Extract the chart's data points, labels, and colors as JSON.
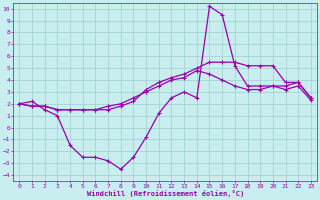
{
  "title": "",
  "xlabel": "Windchill (Refroidissement éolien,°C)",
  "bg_color": "#c8eef0",
  "grid_color": "#9ecfcf",
  "line_color": "#9900aa",
  "xlim": [
    -0.5,
    23.5
  ],
  "ylim": [
    -4.5,
    10.5
  ],
  "xticks": [
    0,
    1,
    2,
    3,
    4,
    5,
    6,
    7,
    8,
    9,
    10,
    11,
    12,
    13,
    14,
    15,
    16,
    17,
    18,
    19,
    20,
    21,
    22,
    23
  ],
  "yticks": [
    -4,
    -3,
    -2,
    -1,
    0,
    1,
    2,
    3,
    4,
    5,
    6,
    7,
    8,
    9,
    10
  ],
  "series": [
    {
      "x": [
        0,
        1,
        2,
        3,
        4,
        5,
        6,
        7,
        8,
        9,
        10,
        11,
        12,
        13,
        14,
        15,
        16,
        17,
        18,
        19,
        20,
        21,
        22,
        23
      ],
      "y": [
        2,
        2.2,
        1.5,
        1,
        -1.5,
        -2.5,
        -2.5,
        -2.8,
        -3.5,
        -2.5,
        -0.8,
        1.2,
        2.5,
        3,
        2.5,
        10.2,
        9.5,
        5.2,
        3.5,
        3.5,
        3.5,
        3.2,
        3.5,
        2.3
      ]
    },
    {
      "x": [
        0,
        1,
        2,
        3,
        4,
        5,
        6,
        7,
        8,
        9,
        10,
        11,
        12,
        13,
        14,
        15,
        16,
        17,
        18,
        19,
        20,
        21,
        22,
        23
      ],
      "y": [
        2,
        1.8,
        1.8,
        1.5,
        1.5,
        1.5,
        1.5,
        1.5,
        1.8,
        2.2,
        3.2,
        3.8,
        4.2,
        4.5,
        5.0,
        5.5,
        5.5,
        5.5,
        5.2,
        5.2,
        5.2,
        3.8,
        3.8,
        2.5
      ]
    },
    {
      "x": [
        0,
        1,
        2,
        3,
        4,
        5,
        6,
        7,
        8,
        9,
        10,
        11,
        12,
        13,
        14,
        15,
        16,
        17,
        18,
        19,
        20,
        21,
        22,
        23
      ],
      "y": [
        2,
        1.8,
        1.8,
        1.5,
        1.5,
        1.5,
        1.5,
        1.8,
        2.0,
        2.5,
        3.0,
        3.5,
        4.0,
        4.2,
        4.8,
        4.5,
        4.0,
        3.5,
        3.2,
        3.2,
        3.5,
        3.5,
        3.8,
        2.5
      ]
    }
  ],
  "marker": "+",
  "markersize": 3,
  "linewidth": 0.9
}
